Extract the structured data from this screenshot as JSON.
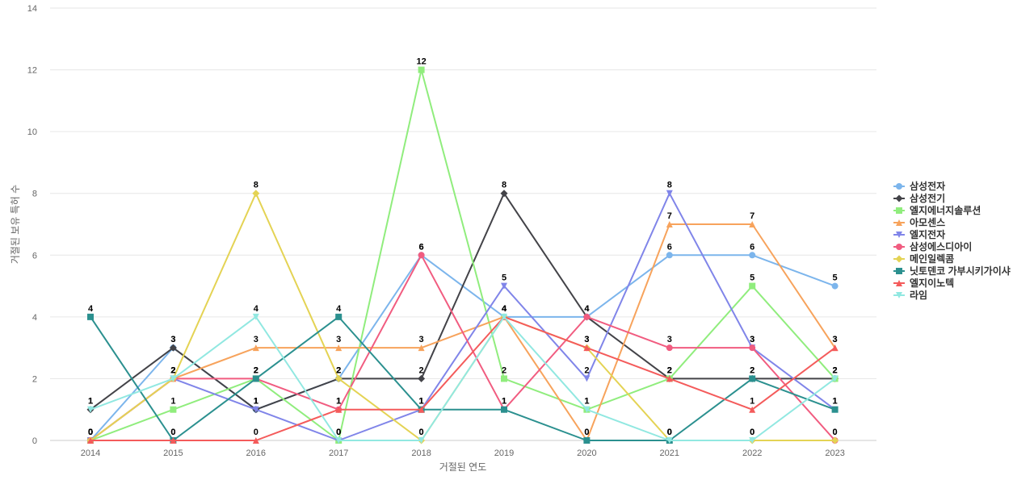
{
  "chart_data": {
    "type": "line",
    "xlabel": "거절된 연도",
    "ylabel": "거절된 보유 특허 수",
    "x": [
      "2014",
      "2015",
      "2016",
      "2017",
      "2018",
      "2019",
      "2020",
      "2021",
      "2022",
      "2023"
    ],
    "ylim": [
      0,
      14
    ],
    "y_ticks": [
      "0",
      "2",
      "4",
      "6",
      "8",
      "10",
      "12",
      "14"
    ],
    "grid": true,
    "legend_position": "right",
    "series": [
      {
        "name": "삼성전자",
        "color": "#7cb5ec",
        "marker": "circle",
        "values": [
          0,
          3,
          1,
          2,
          6,
          4,
          4,
          6,
          6,
          5
        ],
        "labels": [
          "0",
          "3",
          "1",
          "2",
          "6",
          "4",
          "4",
          "6",
          "6",
          "5"
        ]
      },
      {
        "name": "삼성전기",
        "color": "#434348",
        "marker": "diamond",
        "values": [
          1,
          3,
          1,
          2,
          2,
          8,
          4,
          2,
          2,
          2
        ],
        "labels": [
          "1",
          "3",
          "1",
          "2",
          "2",
          "8",
          "4",
          "2",
          "2",
          "2"
        ]
      },
      {
        "name": "엘지에너지솔루션",
        "color": "#90ed7d",
        "marker": "square",
        "values": [
          0,
          1,
          2,
          0,
          12,
          2,
          1,
          2,
          5,
          2
        ],
        "labels": [
          "0",
          "1",
          "2",
          "0",
          "12",
          "2",
          "1",
          "2",
          "5",
          "2"
        ]
      },
      {
        "name": "아모센스",
        "color": "#f7a35c",
        "marker": "triangle",
        "values": [
          0,
          2,
          3,
          3,
          3,
          4,
          0,
          7,
          7,
          3
        ],
        "labels": [
          "0",
          "2",
          "3",
          "3",
          "3",
          "4",
          "0",
          "7",
          "7",
          "3"
        ]
      },
      {
        "name": "엘지전자",
        "color": "#8085e9",
        "marker": "triangle-down",
        "values": [
          0,
          2,
          1,
          0,
          1,
          5,
          2,
          8,
          3,
          1
        ],
        "labels": [
          "0",
          "2",
          "1",
          "0",
          "1",
          "5",
          "2",
          "8",
          "3",
          "1"
        ]
      },
      {
        "name": "삼성에스디아이",
        "color": "#f15c80",
        "marker": "circle",
        "values": [
          0,
          2,
          2,
          1,
          6,
          1,
          4,
          3,
          3,
          0
        ],
        "labels": [
          "0",
          "2",
          "2",
          "1",
          "6",
          "1",
          "4",
          "3",
          "3",
          "0"
        ]
      },
      {
        "name": "메인일렉콤",
        "color": "#e4d354",
        "marker": "diamond",
        "values": [
          0,
          2,
          8,
          2,
          0,
          4,
          3,
          0,
          0,
          0
        ],
        "labels": [
          "0",
          "2",
          "8",
          "2",
          "0",
          "4",
          "3",
          "0",
          "0",
          "0"
        ]
      },
      {
        "name": "닛토덴코 가부시키가이샤",
        "color": "#2b908f",
        "marker": "square",
        "values": [
          4,
          0,
          2,
          4,
          1,
          1,
          0,
          0,
          2,
          1
        ],
        "labels": [
          "4",
          "0",
          "2",
          "4",
          "1",
          "1",
          "0",
          "0",
          "2",
          "1"
        ]
      },
      {
        "name": "엘지이노텍",
        "color": "#f45b5b",
        "marker": "triangle",
        "values": [
          0,
          0,
          0,
          1,
          1,
          4,
          3,
          2,
          1,
          3
        ],
        "labels": [
          "0",
          "0",
          "0",
          "1",
          "1",
          "4",
          "3",
          "2",
          "1",
          "3"
        ]
      },
      {
        "name": "라임",
        "color": "#91e8e1",
        "marker": "triangle-down",
        "values": [
          1,
          2,
          4,
          0,
          0,
          4,
          1,
          0,
          0,
          2
        ],
        "labels": [
          "1",
          "2",
          "4",
          "0",
          "0",
          "4",
          "1",
          "0",
          "0",
          "2"
        ]
      }
    ]
  }
}
